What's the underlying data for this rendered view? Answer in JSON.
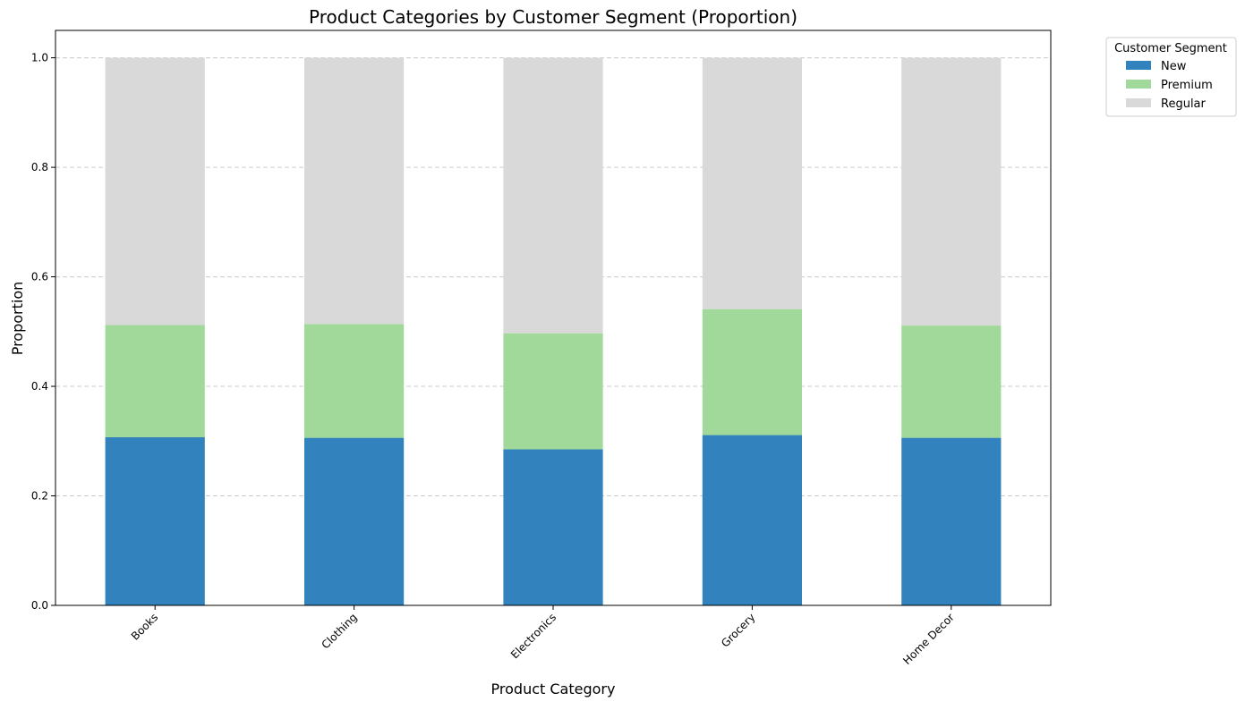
{
  "chart_data": {
    "type": "bar",
    "stacked": true,
    "title": "Product Categories by Customer Segment (Proportion)",
    "xlabel": "Product Category",
    "ylabel": "Proportion",
    "ylim": [
      0,
      1.05
    ],
    "yticks": [
      "0.0",
      "0.2",
      "0.4",
      "0.6",
      "0.8",
      "1.0"
    ],
    "ytick_values": [
      0,
      0.2,
      0.4,
      0.6,
      0.8,
      1.0
    ],
    "grid": "y-dashed",
    "categories": [
      "Books",
      "Clothing",
      "Electronics",
      "Grocery",
      "Home Decor"
    ],
    "series": [
      {
        "name": "New",
        "color": "#3182bd",
        "values": [
          0.307,
          0.306,
          0.285,
          0.311,
          0.306
        ]
      },
      {
        "name": "Premium",
        "color": "#a1d99b",
        "values": [
          0.205,
          0.208,
          0.212,
          0.23,
          0.205
        ]
      },
      {
        "name": "Regular",
        "color": "#d9d9d9",
        "values": [
          0.488,
          0.486,
          0.503,
          0.459,
          0.489
        ]
      }
    ],
    "legend": {
      "title": "Customer Segment",
      "placement": "outside-top-right"
    }
  }
}
